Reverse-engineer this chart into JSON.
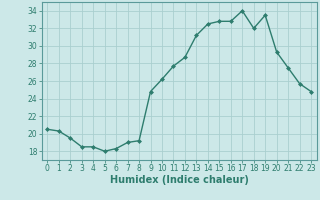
{
  "xlabel": "Humidex (Indice chaleur)",
  "x": [
    0,
    1,
    2,
    3,
    4,
    5,
    6,
    7,
    8,
    9,
    10,
    11,
    12,
    13,
    14,
    15,
    16,
    17,
    18,
    19,
    20,
    21,
    22,
    23
  ],
  "y": [
    20.5,
    20.3,
    19.5,
    18.5,
    18.5,
    18.0,
    18.3,
    19.0,
    19.2,
    24.8,
    26.2,
    27.7,
    28.7,
    31.2,
    32.5,
    32.8,
    32.8,
    34.0,
    32.0,
    33.5,
    29.3,
    27.5,
    25.7,
    24.8
  ],
  "line_color": "#2e7d6e",
  "marker": "D",
  "marker_size": 2.0,
  "line_width": 1.0,
  "bg_color": "#cce8e8",
  "grid_color": "#aacfcf",
  "ylim": [
    17,
    35
  ],
  "xlim": [
    -0.5,
    23.5
  ],
  "yticks": [
    18,
    20,
    22,
    24,
    26,
    28,
    30,
    32,
    34
  ],
  "xticks": [
    0,
    1,
    2,
    3,
    4,
    5,
    6,
    7,
    8,
    9,
    10,
    11,
    12,
    13,
    14,
    15,
    16,
    17,
    18,
    19,
    20,
    21,
    22,
    23
  ],
  "tick_fontsize": 5.5,
  "xlabel_fontsize": 7.0
}
